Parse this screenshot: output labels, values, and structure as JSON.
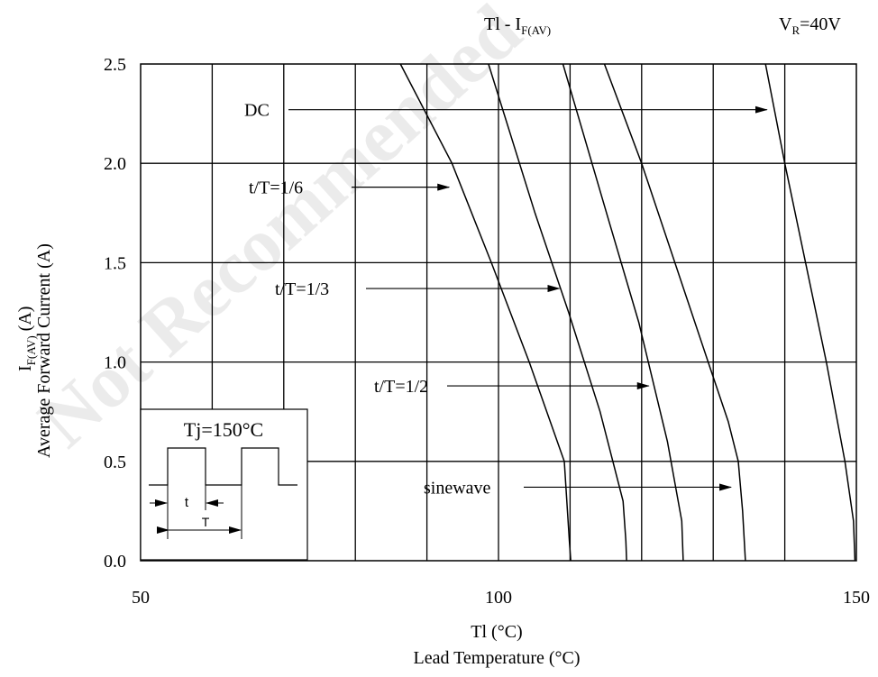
{
  "chart_data": {
    "type": "line",
    "title": "Tl - I",
    "title_sub": "F(AV)",
    "condition": "V",
    "condition_sub": "R",
    "condition_value": "=40V",
    "xlabel": "Tl (°C)",
    "xlabel2": "Lead Temperature (°C)",
    "ylabel_main": "I",
    "ylabel_sub": "F(AV)",
    "ylabel_unit": " (A)",
    "ylabel2": "Average Forward Current (A)",
    "xlim": [
      50,
      150
    ],
    "ylim": [
      0,
      2.5
    ],
    "x_ticks": [
      50,
      100,
      150
    ],
    "x_tick_labels": [
      "50",
      "100",
      "150"
    ],
    "y_ticks": [
      0,
      0.5,
      1.0,
      1.5,
      2.0,
      2.5
    ],
    "y_tick_labels": [
      "0.0",
      "0.5",
      "1.0",
      "1.5",
      "2.0",
      "2.5"
    ],
    "x_grid": [
      60,
      70,
      80,
      90,
      100,
      110,
      120,
      130,
      140
    ],
    "y_grid": [
      0.5,
      1.0,
      1.5,
      2.0
    ],
    "grid": true,
    "series": [
      {
        "name": "t/T=1/6",
        "x": [
          86.3,
          93.5,
          99.0,
          104.3,
          109.2,
          109.9,
          110.1
        ],
        "y": [
          2.5,
          2.0,
          1.5,
          1.0,
          0.5,
          0.1,
          0.0
        ],
        "label_y": 1.88,
        "arrow_x": 93.1
      },
      {
        "name": "t/T=1/3",
        "x": [
          98.6,
          105.1,
          109.8,
          114.2,
          117.4,
          117.8,
          117.9
        ],
        "y": [
          2.5,
          1.75,
          1.25,
          0.75,
          0.3,
          0.1,
          0.0
        ],
        "label_y": 1.37,
        "arrow_x": 108.5
      },
      {
        "name": "t/T=1/2",
        "x": [
          109.0,
          115.5,
          119.6,
          123.6,
          125.6,
          125.8
        ],
        "y": [
          2.5,
          1.7,
          1.2,
          0.6,
          0.2,
          0.0
        ],
        "label_y": 0.88,
        "arrow_x": 121.0
      },
      {
        "name": "DC",
        "x": [
          114.8,
          120.0,
          129.3,
          132.1,
          133.5,
          134.1,
          134.5
        ],
        "y": [
          2.5,
          2.0,
          1.0,
          0.7,
          0.5,
          0.25,
          0.0
        ],
        "label_y": 2.27,
        "arrow_x": 137.5
      },
      {
        "name": "sinewave",
        "x": [
          137.3,
          140.0,
          145.8,
          148.4,
          149.6,
          149.8
        ],
        "y": [
          2.5,
          2.0,
          1.0,
          0.5,
          0.2,
          0.0
        ],
        "label_y": 0.37,
        "arrow_x": 132.5
      }
    ],
    "inset": {
      "label": "Tj=150°C",
      "t_label": "t",
      "T_label": "T"
    },
    "watermark": "Not Recommended"
  }
}
